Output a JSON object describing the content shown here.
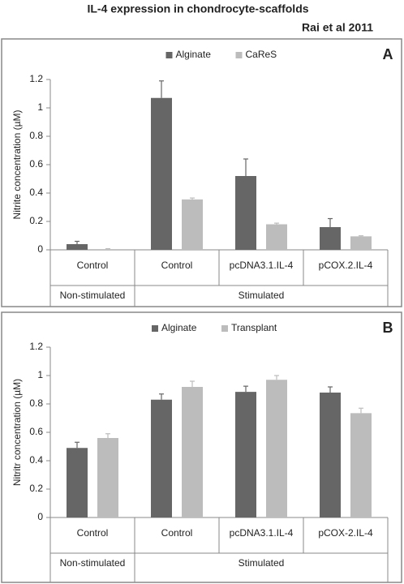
{
  "title": "IL-4 expression in chondrocyte-scaffolds",
  "subtitle": "Rai et al 2011",
  "chart_data": [
    {
      "type": "bar",
      "panel_label": "A",
      "y_label": "Nitrite concentration (µM)",
      "categories": [
        "Control",
        "Control",
        "pcDNA3.1.IL-4",
        "pCOX.2.IL-4"
      ],
      "groups": [
        {
          "name": "Non-stimulated",
          "size": 1
        },
        {
          "name": "Stimulated",
          "size": 3
        }
      ],
      "series": [
        {
          "name": "Alginate",
          "color": "#666666",
          "values": [
            0.04,
            1.07,
            0.52,
            0.16
          ],
          "errors": [
            0.02,
            0.12,
            0.12,
            0.06
          ]
        },
        {
          "name": "CaReS",
          "color": "#bcbcbc",
          "values": [
            0.005,
            0.355,
            0.18,
            0.095
          ],
          "errors": [
            0.003,
            0.01,
            0.008,
            0.004
          ]
        }
      ],
      "ylim": [
        0,
        1.2
      ],
      "yticks": [
        0,
        0.2,
        0.4,
        0.6,
        0.8,
        1,
        1.2
      ],
      "grid": false,
      "legend": "top"
    },
    {
      "type": "bar",
      "panel_label": "B",
      "y_label": "Nitritr concentration (µM)",
      "categories": [
        "Control",
        "Control",
        "pcDNA3.1.IL-4",
        "pCOX-2.IL-4"
      ],
      "groups": [
        {
          "name": "Non-stimulated",
          "size": 1
        },
        {
          "name": "Stimulated",
          "size": 3
        }
      ],
      "series": [
        {
          "name": "Alginate",
          "color": "#666666",
          "values": [
            0.49,
            0.83,
            0.885,
            0.88
          ],
          "errors": [
            0.04,
            0.04,
            0.04,
            0.04
          ]
        },
        {
          "name": "Transplant",
          "color": "#bcbcbc",
          "values": [
            0.56,
            0.92,
            0.97,
            0.735
          ],
          "errors": [
            0.03,
            0.04,
            0.03,
            0.035
          ]
        }
      ],
      "ylim": [
        0,
        1.2
      ],
      "yticks": [
        0,
        0.2,
        0.4,
        0.6,
        0.8,
        1,
        1.2
      ],
      "grid": false,
      "legend": "top"
    }
  ]
}
